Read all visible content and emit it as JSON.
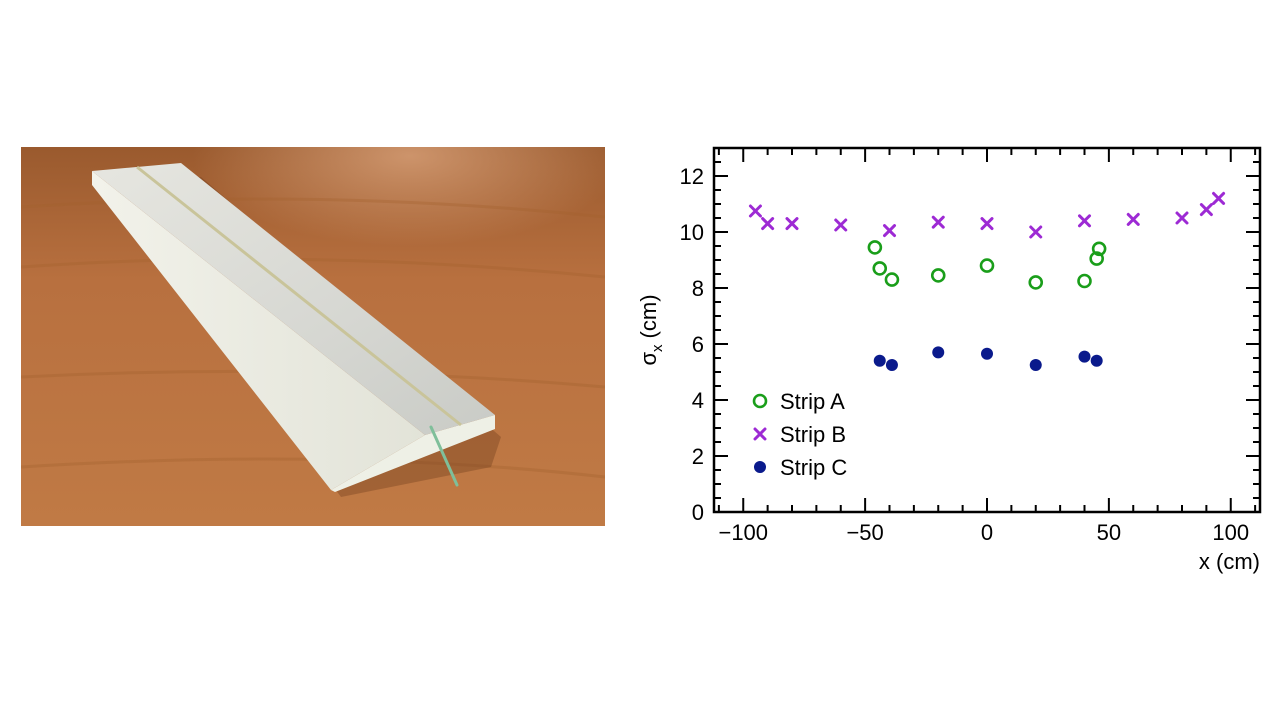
{
  "photo": {
    "subject": "scintillator-strip-with-fiber",
    "colors": {
      "table": "#b8703f",
      "strip": "#dcdcd6",
      "fiber": "#7fbf9a"
    }
  },
  "chart_data": {
    "type": "scatter",
    "xlabel": "x (cm)",
    "ylabel_main": "σ",
    "ylabel_sub": "x",
    "ylabel_unit": "(cm)",
    "xlim": [
      -112,
      112
    ],
    "ylim": [
      0,
      13
    ],
    "xticks": [
      -100,
      -50,
      0,
      50,
      100
    ],
    "xtick_labels": [
      "−100",
      "−50",
      "0",
      "50",
      "100"
    ],
    "yticks": [
      0,
      2,
      4,
      6,
      8,
      10,
      12
    ],
    "ytick_labels": [
      "0",
      "2",
      "4",
      "6",
      "8",
      "10",
      "12"
    ],
    "grid": false,
    "legend_position": "bottom-left",
    "series": [
      {
        "name": "Strip A",
        "marker": "open-circle",
        "color": "#1a9e1a",
        "points": [
          [
            -46,
            9.45
          ],
          [
            -44,
            8.7
          ],
          [
            -39,
            8.3
          ],
          [
            -20,
            8.45
          ],
          [
            0,
            8.8
          ],
          [
            20,
            8.2
          ],
          [
            40,
            8.25
          ],
          [
            45,
            9.05
          ],
          [
            46,
            9.4
          ]
        ]
      },
      {
        "name": "Strip B",
        "marker": "cross",
        "color": "#9d2ad4",
        "points": [
          [
            -95,
            10.75
          ],
          [
            -90,
            10.3
          ],
          [
            -80,
            10.3
          ],
          [
            -60,
            10.25
          ],
          [
            -40,
            10.05
          ],
          [
            -20,
            10.35
          ],
          [
            0,
            10.3
          ],
          [
            20,
            10.0
          ],
          [
            40,
            10.4
          ],
          [
            60,
            10.45
          ],
          [
            80,
            10.5
          ],
          [
            90,
            10.8
          ],
          [
            95,
            11.2
          ]
        ]
      },
      {
        "name": "Strip C",
        "marker": "filled-circle",
        "color": "#0a1a8c",
        "points": [
          [
            -44,
            5.4
          ],
          [
            -39,
            5.25
          ],
          [
            -20,
            5.7
          ],
          [
            0,
            5.65
          ],
          [
            20,
            5.25
          ],
          [
            40,
            5.55
          ],
          [
            45,
            5.4
          ]
        ]
      }
    ]
  }
}
